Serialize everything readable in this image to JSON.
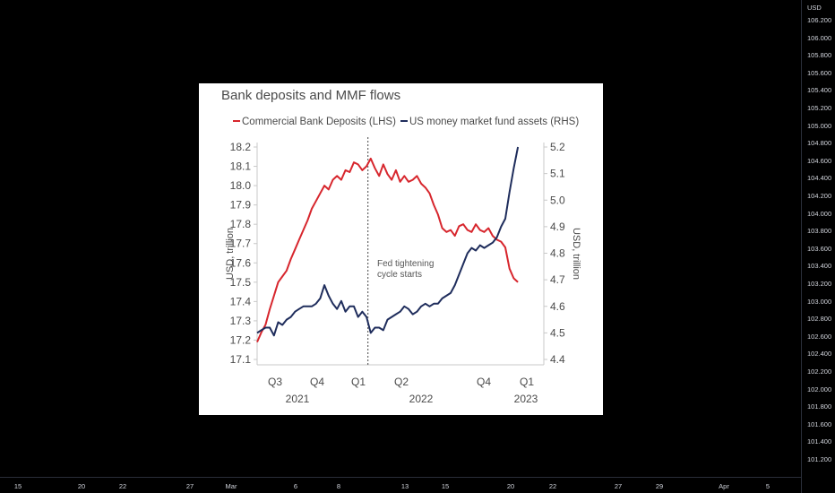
{
  "price_axis": {
    "currency": "USD",
    "labels": [
      "106.200",
      "106.000",
      "105.800",
      "105.600",
      "105.400",
      "105.200",
      "105.000",
      "104.800",
      "104.600",
      "104.400",
      "104.200",
      "104.000",
      "103.800",
      "103.600",
      "103.400",
      "103.200",
      "103.000",
      "102.800",
      "102.600",
      "102.400",
      "102.200",
      "102.000",
      "101.800",
      "101.600",
      "101.400",
      "101.200"
    ]
  },
  "time_axis": {
    "labels": [
      "15",
      "20",
      "22",
      "27",
      "Mar",
      "6",
      "8",
      "13",
      "15",
      "20",
      "22",
      "27",
      "29",
      "Apr",
      "5"
    ]
  },
  "chart_data": {
    "type": "line",
    "title": "Bank deposits and MMF flows",
    "legend": [
      "Commercial Bank Deposits (LHS)",
      "US money market fund assets (RHS)"
    ],
    "colors": {
      "deposits": "#d7262d",
      "mmf": "#1f2d5c",
      "grid": "#c8c8c8"
    },
    "ylabel_left": "USD, trillion",
    "ylabel_right": "USD, trillion",
    "y_left_ticks": [
      "18.2",
      "18.1",
      "18.0",
      "17.9",
      "17.8",
      "17.7",
      "17.6",
      "17.5",
      "17.4",
      "17.3",
      "17.2",
      "17.1"
    ],
    "y_right_ticks": [
      "5.2",
      "5.1",
      "5.0",
      "4.9",
      "4.8",
      "4.7",
      "4.6",
      "4.5",
      "4.4"
    ],
    "ylim_left": [
      17.1,
      18.2
    ],
    "ylim_right": [
      4.4,
      5.2
    ],
    "x_quarter_ticks": [
      "Q3",
      "Q4",
      "Q1",
      "Q2",
      "Q4",
      "Q1"
    ],
    "x_year_labels": [
      "2021",
      "2022",
      "2023"
    ],
    "annotation": [
      "Fed tightening",
      "cycle starts"
    ],
    "xlim": [
      0,
      1
    ],
    "vline_x": 0.395,
    "series": [
      {
        "name": "Commercial Bank Deposits (LHS)",
        "axis": "left",
        "x": [
          0.0,
          0.015,
          0.03,
          0.045,
          0.06,
          0.075,
          0.09,
          0.105,
          0.12,
          0.135,
          0.15,
          0.165,
          0.18,
          0.195,
          0.21,
          0.225,
          0.24,
          0.255,
          0.27,
          0.285,
          0.3,
          0.315,
          0.33,
          0.345,
          0.36,
          0.375,
          0.39,
          0.405,
          0.42,
          0.435,
          0.45,
          0.465,
          0.48,
          0.495,
          0.51,
          0.525,
          0.54,
          0.555,
          0.57,
          0.585,
          0.6,
          0.615,
          0.63,
          0.645,
          0.66,
          0.675,
          0.69,
          0.705,
          0.72,
          0.735,
          0.75,
          0.765,
          0.78,
          0.795,
          0.81,
          0.825,
          0.84,
          0.855,
          0.87,
          0.885,
          0.9,
          0.915,
          0.93
        ],
        "values": [
          17.19,
          17.24,
          17.28,
          17.36,
          17.43,
          17.5,
          17.53,
          17.56,
          17.62,
          17.67,
          17.72,
          17.77,
          17.82,
          17.88,
          17.92,
          17.96,
          18.0,
          17.98,
          18.03,
          18.05,
          18.03,
          18.08,
          18.07,
          18.12,
          18.11,
          18.08,
          18.1,
          18.14,
          18.09,
          18.05,
          18.11,
          18.06,
          18.03,
          18.08,
          18.02,
          18.05,
          18.02,
          18.03,
          18.05,
          18.01,
          17.99,
          17.96,
          17.9,
          17.85,
          17.78,
          17.76,
          17.77,
          17.74,
          17.79,
          17.8,
          17.77,
          17.76,
          17.8,
          17.77,
          17.76,
          17.78,
          17.74,
          17.72,
          17.71,
          17.68,
          17.57,
          17.52,
          17.5
        ]
      },
      {
        "name": "US money market fund assets (RHS)",
        "axis": "right",
        "x": [
          0.0,
          0.015,
          0.03,
          0.045,
          0.06,
          0.075,
          0.09,
          0.105,
          0.12,
          0.135,
          0.15,
          0.165,
          0.18,
          0.195,
          0.21,
          0.225,
          0.24,
          0.255,
          0.27,
          0.285,
          0.3,
          0.315,
          0.33,
          0.345,
          0.36,
          0.375,
          0.39,
          0.405,
          0.42,
          0.435,
          0.45,
          0.465,
          0.48,
          0.495,
          0.51,
          0.525,
          0.54,
          0.555,
          0.57,
          0.585,
          0.6,
          0.615,
          0.63,
          0.645,
          0.66,
          0.675,
          0.69,
          0.705,
          0.72,
          0.735,
          0.75,
          0.765,
          0.78,
          0.795,
          0.81,
          0.825,
          0.84,
          0.855,
          0.87,
          0.885,
          0.9,
          0.915,
          0.93
        ],
        "values": [
          4.5,
          4.51,
          4.52,
          4.52,
          4.49,
          4.54,
          4.53,
          4.55,
          4.56,
          4.58,
          4.59,
          4.6,
          4.6,
          4.6,
          4.61,
          4.63,
          4.68,
          4.64,
          4.61,
          4.59,
          4.62,
          4.58,
          4.6,
          4.6,
          4.56,
          4.58,
          4.56,
          4.5,
          4.52,
          4.52,
          4.51,
          4.55,
          4.56,
          4.57,
          4.58,
          4.6,
          4.59,
          4.57,
          4.58,
          4.6,
          4.61,
          4.6,
          4.61,
          4.61,
          4.63,
          4.64,
          4.65,
          4.68,
          4.72,
          4.76,
          4.8,
          4.82,
          4.81,
          4.83,
          4.82,
          4.83,
          4.84,
          4.86,
          4.9,
          4.93,
          5.03,
          5.12,
          5.2
        ]
      }
    ]
  }
}
